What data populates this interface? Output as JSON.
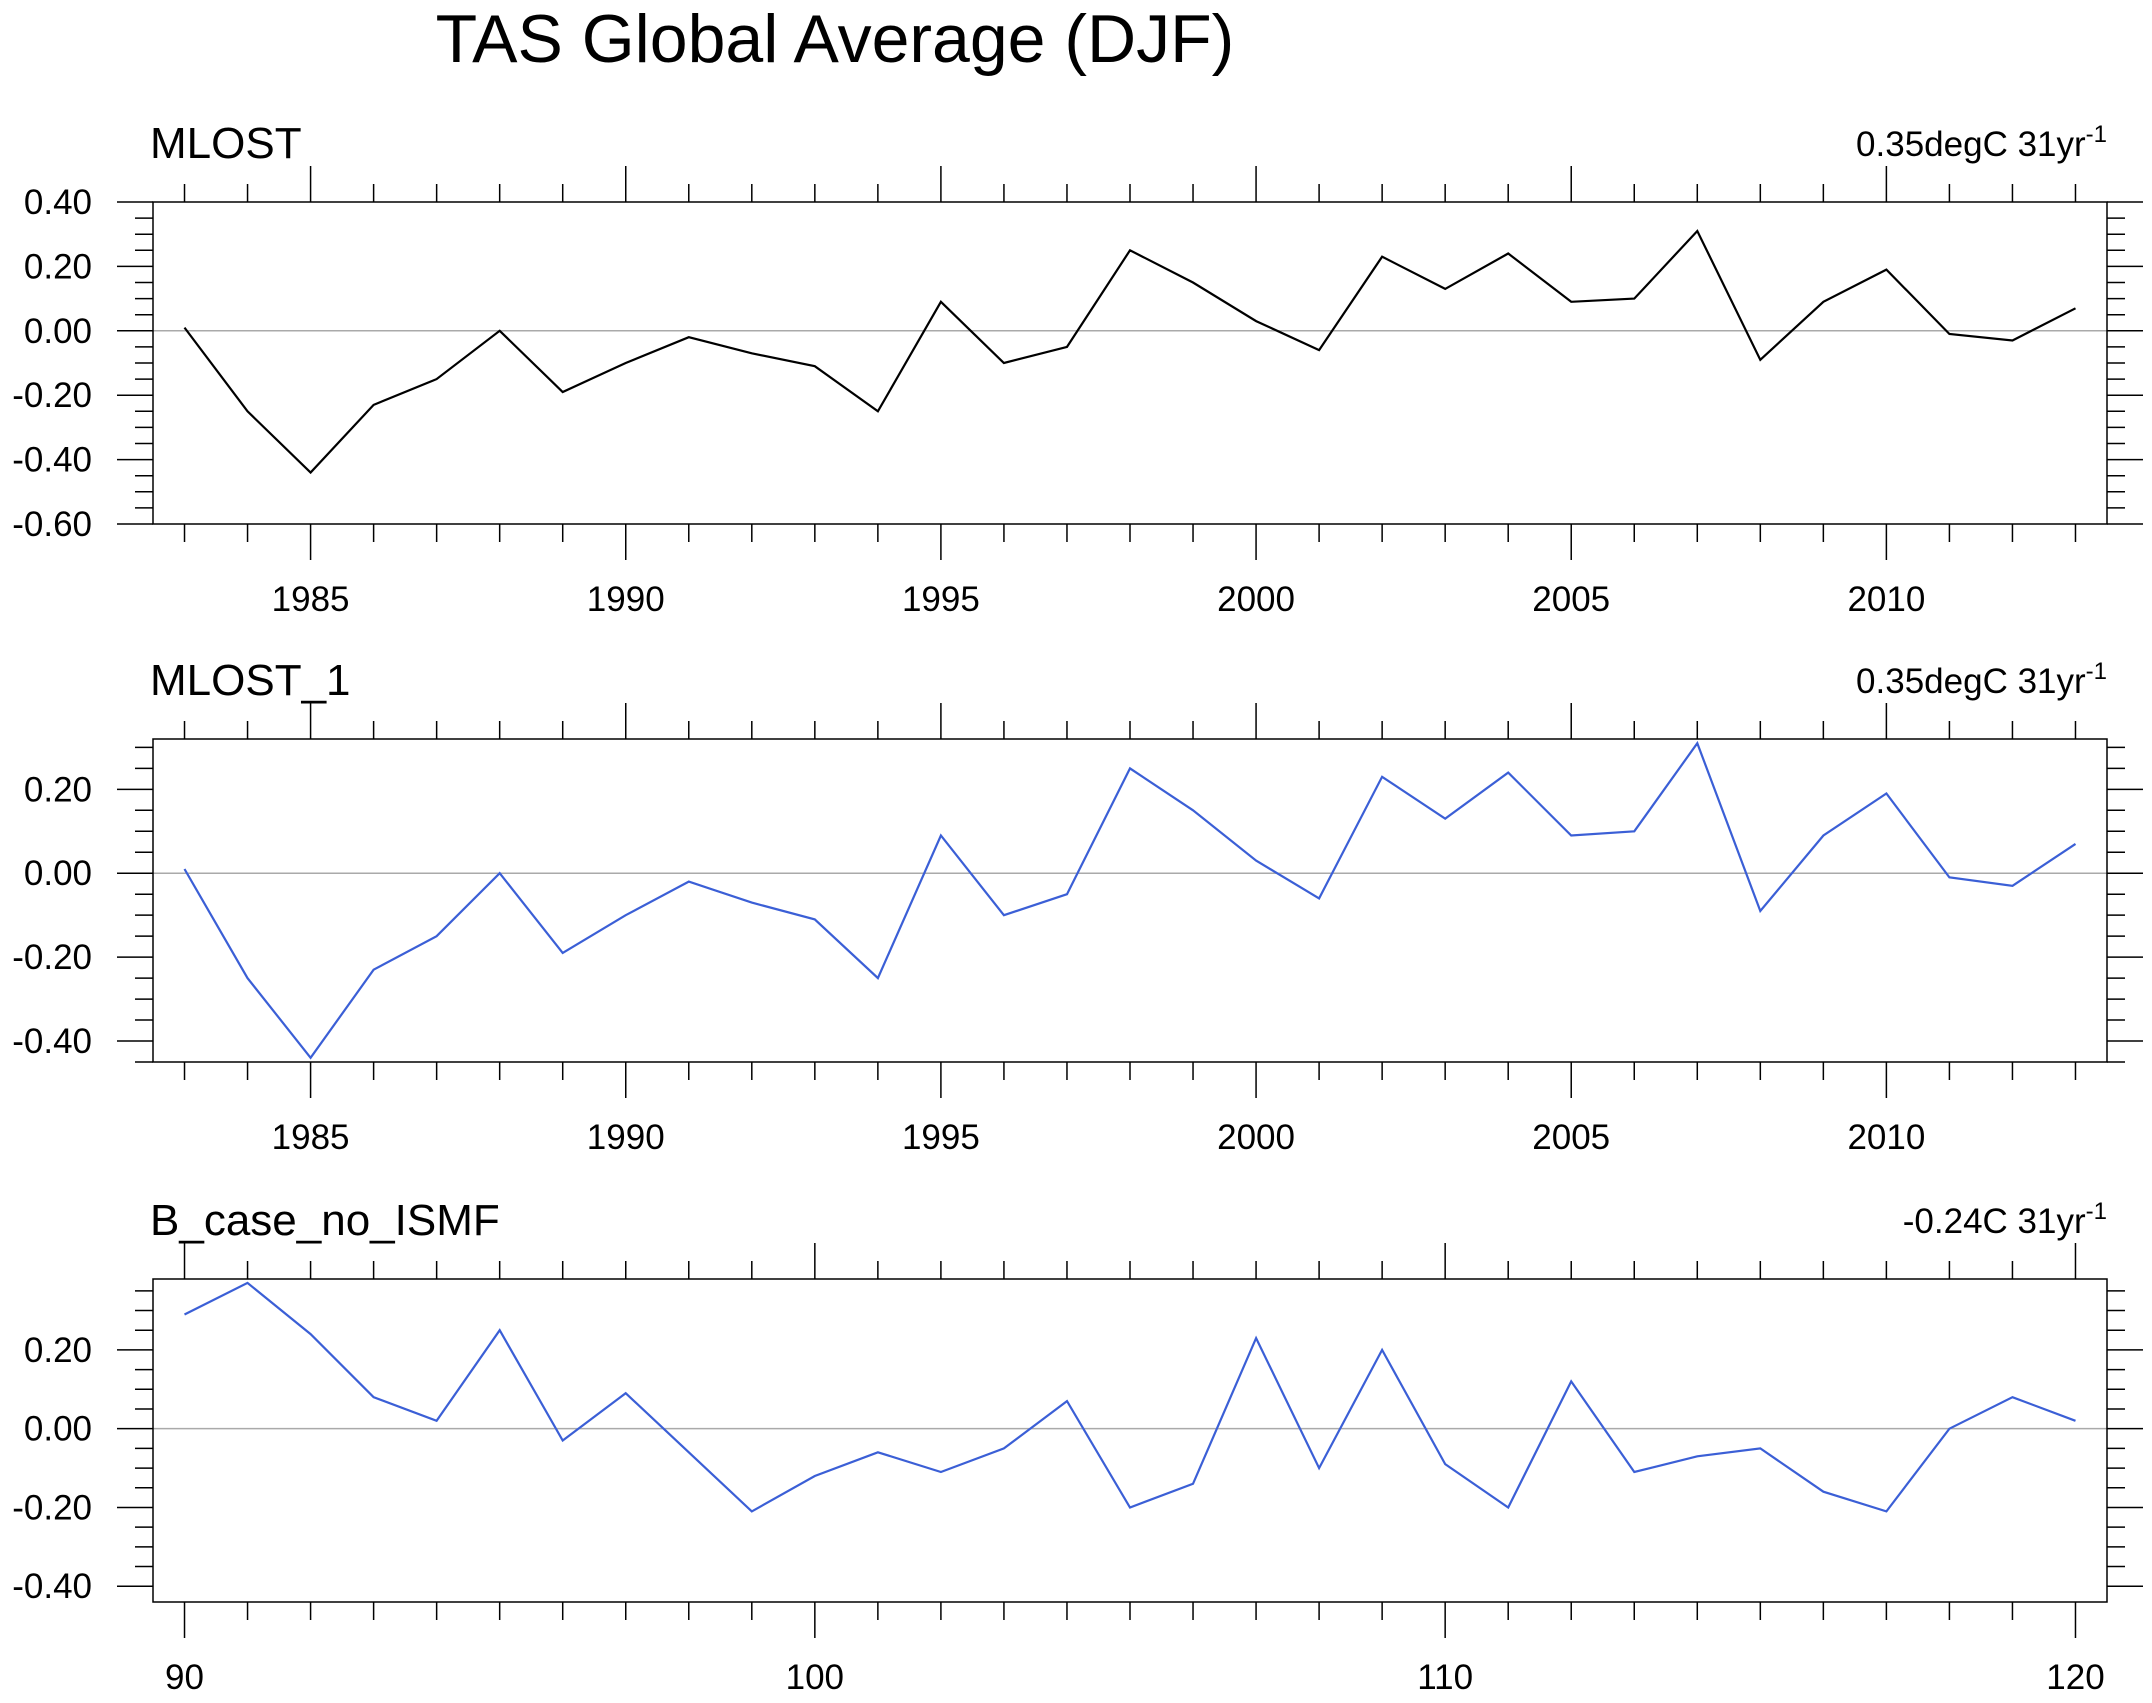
{
  "page_title": "TAS Global Average (DJF)",
  "chart_data": [
    {
      "type": "line",
      "title": "MLOST",
      "trend_label": "0.35degC 31yr",
      "trend_superscript": "-1",
      "line_color": "#000000",
      "x": [
        1983,
        1984,
        1985,
        1986,
        1987,
        1988,
        1989,
        1990,
        1991,
        1992,
        1993,
        1994,
        1995,
        1996,
        1997,
        1998,
        1999,
        2000,
        2001,
        2002,
        2003,
        2004,
        2005,
        2006,
        2007,
        2008,
        2009,
        2010,
        2011,
        2012,
        2013
      ],
      "values": [
        0.01,
        -0.25,
        -0.44,
        -0.23,
        -0.15,
        0.0,
        -0.19,
        -0.1,
        -0.02,
        -0.07,
        -0.11,
        -0.25,
        0.09,
        -0.1,
        -0.05,
        0.25,
        0.15,
        0.03,
        -0.06,
        0.23,
        0.13,
        0.24,
        0.09,
        0.1,
        0.31,
        -0.09,
        0.09,
        0.19,
        -0.01,
        -0.03,
        0.07
      ],
      "xlim": [
        1982.5,
        2013.5
      ],
      "ylim": [
        -0.6,
        0.4
      ],
      "xticks": [
        1985,
        1990,
        1995,
        2000,
        2005,
        2010
      ],
      "xtick_labels": [
        "1985",
        "1990",
        "1995",
        "2000",
        "2005",
        "2010"
      ],
      "yticks": [
        -0.6,
        -0.4,
        -0.2,
        0.0,
        0.2,
        0.4
      ],
      "ytick_labels": [
        "-0.60",
        "-0.40",
        "-0.20",
        "0.00",
        "0.20",
        "0.40"
      ],
      "reference_line": 0
    },
    {
      "type": "line",
      "title": "MLOST_1",
      "trend_label": "0.35degC 31yr",
      "trend_superscript": "-1",
      "line_color": "#3b5fd6",
      "x": [
        1983,
        1984,
        1985,
        1986,
        1987,
        1988,
        1989,
        1990,
        1991,
        1992,
        1993,
        1994,
        1995,
        1996,
        1997,
        1998,
        1999,
        2000,
        2001,
        2002,
        2003,
        2004,
        2005,
        2006,
        2007,
        2008,
        2009,
        2010,
        2011,
        2012,
        2013
      ],
      "values": [
        0.01,
        -0.25,
        -0.44,
        -0.23,
        -0.15,
        0.0,
        -0.19,
        -0.1,
        -0.02,
        -0.07,
        -0.11,
        -0.25,
        0.09,
        -0.1,
        -0.05,
        0.25,
        0.15,
        0.03,
        -0.06,
        0.23,
        0.13,
        0.24,
        0.09,
        0.1,
        0.31,
        -0.09,
        0.09,
        0.19,
        -0.01,
        -0.03,
        0.07
      ],
      "xlim": [
        1982.5,
        2013.5
      ],
      "ylim": [
        -0.45,
        0.32
      ],
      "xticks": [
        1985,
        1990,
        1995,
        2000,
        2005,
        2010
      ],
      "xtick_labels": [
        "1985",
        "1990",
        "1995",
        "2000",
        "2005",
        "2010"
      ],
      "yticks": [
        -0.4,
        -0.2,
        0.0,
        0.2
      ],
      "ytick_labels": [
        "-0.40",
        "-0.20",
        "0.00",
        "0.20"
      ],
      "reference_line": 0
    },
    {
      "type": "line",
      "title": "B_case_no_ISMF",
      "trend_label": "-0.24C 31yr",
      "trend_superscript": "-1",
      "line_color": "#3b5fd6",
      "x": [
        90,
        91,
        92,
        93,
        94,
        95,
        96,
        97,
        98,
        99,
        100,
        101,
        102,
        103,
        104,
        105,
        106,
        107,
        108,
        109,
        110,
        111,
        112,
        113,
        114,
        115,
        116,
        117,
        118,
        119,
        120
      ],
      "values": [
        0.29,
        0.37,
        0.24,
        0.08,
        0.02,
        0.25,
        -0.03,
        0.09,
        -0.06,
        -0.21,
        -0.12,
        -0.06,
        -0.11,
        -0.05,
        0.07,
        -0.2,
        -0.14,
        0.23,
        -0.1,
        0.2,
        -0.09,
        -0.2,
        0.12,
        -0.11,
        -0.07,
        -0.05,
        -0.16,
        -0.21,
        0.0,
        0.08,
        0.02
      ],
      "xlim": [
        89.5,
        120.5
      ],
      "ylim": [
        -0.44,
        0.38
      ],
      "xticks": [
        90,
        100,
        110,
        120
      ],
      "xtick_labels": [
        "90",
        "100",
        "110",
        "120"
      ],
      "yticks": [
        -0.4,
        -0.2,
        0.0,
        0.2
      ],
      "ytick_labels": [
        "-0.40",
        "-0.20",
        "0.00",
        "0.20"
      ],
      "reference_line": 0
    }
  ]
}
